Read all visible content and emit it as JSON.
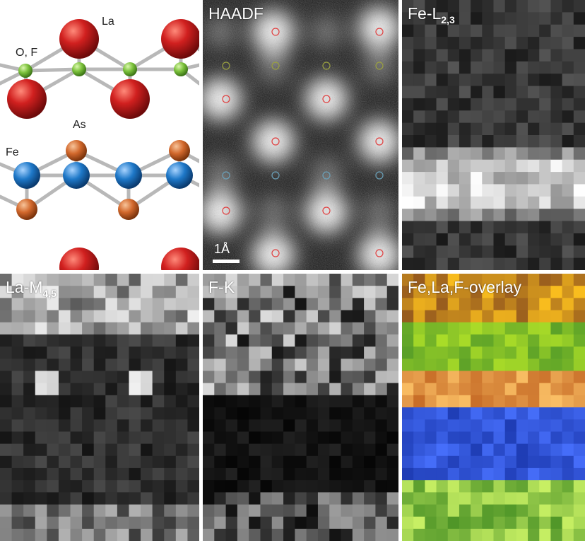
{
  "structure": {
    "labels": {
      "la": "La",
      "of": "O, F",
      "as": "As",
      "fe": "Fe"
    },
    "colors": {
      "la": "#d1201f",
      "of": "#7cc23c",
      "as": "#d2682c",
      "fe": "#1e78c8",
      "bond": "#b8b8b8"
    }
  },
  "panels": {
    "haadf": {
      "label": "HAADF",
      "scale_bar": "1Å"
    },
    "fe_l": {
      "label_main": "Fe-L",
      "label_sub": "2,3"
    },
    "la_m": {
      "label_main": "La-M",
      "label_sub": "4,5"
    },
    "f_k": {
      "label": "F-K"
    },
    "overlay": {
      "label": "Fe,La,F-overlay"
    }
  }
}
